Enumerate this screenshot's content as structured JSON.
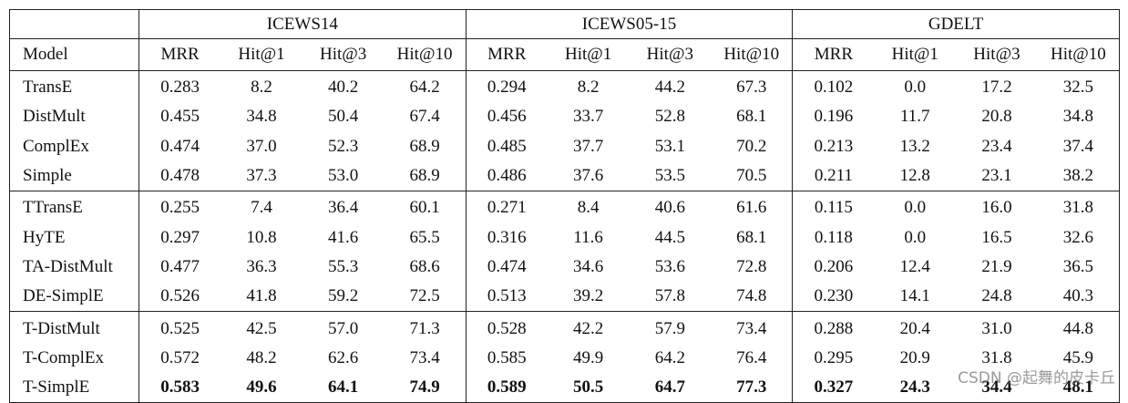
{
  "table": {
    "groups": [
      "ICEWS14",
      "ICEWS05-15",
      "GDELT"
    ],
    "columns": [
      "Model",
      "MRR",
      "Hit@1",
      "Hit@3",
      "Hit@10",
      "MRR",
      "Hit@1",
      "Hit@3",
      "Hit@10",
      "MRR",
      "Hit@1",
      "Hit@3",
      "Hit@10"
    ],
    "row_groups": [
      {
        "rows": [
          [
            "TransE",
            "0.283",
            "8.2",
            "40.2",
            "64.2",
            "0.294",
            "8.2",
            "44.2",
            "67.3",
            "0.102",
            "0.0",
            "17.2",
            "32.5"
          ],
          [
            "DistMult",
            "0.455",
            "34.8",
            "50.4",
            "67.4",
            "0.456",
            "33.7",
            "52.8",
            "68.1",
            "0.196",
            "11.7",
            "20.8",
            "34.8"
          ],
          [
            "ComplEx",
            "0.474",
            "37.0",
            "52.3",
            "68.9",
            "0.485",
            "37.7",
            "53.1",
            "70.2",
            "0.213",
            "13.2",
            "23.4",
            "37.4"
          ],
          [
            "Simple",
            "0.478",
            "37.3",
            "53.0",
            "68.9",
            "0.486",
            "37.6",
            "53.5",
            "70.5",
            "0.211",
            "12.8",
            "23.1",
            "38.2"
          ]
        ]
      },
      {
        "rows": [
          [
            "TTransE",
            "0.255",
            "7.4",
            "36.4",
            "60.1",
            "0.271",
            "8.4",
            "40.6",
            "61.6",
            "0.115",
            "0.0",
            "16.0",
            "31.8"
          ],
          [
            "HyTE",
            "0.297",
            "10.8",
            "41.6",
            "65.5",
            "0.316",
            "11.6",
            "44.5",
            "68.1",
            "0.118",
            "0.0",
            "16.5",
            "32.6"
          ],
          [
            "TA-DistMult",
            "0.477",
            "36.3",
            "55.3",
            "68.6",
            "0.474",
            "34.6",
            "53.6",
            "72.8",
            "0.206",
            "12.4",
            "21.9",
            "36.5"
          ],
          [
            "DE-SimplE",
            "0.526",
            "41.8",
            "59.2",
            "72.5",
            "0.513",
            "39.2",
            "57.8",
            "74.8",
            "0.230",
            "14.1",
            "24.8",
            "40.3"
          ]
        ]
      },
      {
        "rows": [
          [
            "T-DistMult",
            "0.525",
            "42.5",
            "57.0",
            "71.3",
            "0.528",
            "42.2",
            "57.9",
            "73.4",
            "0.288",
            "20.4",
            "31.0",
            "44.8"
          ],
          [
            "T-ComplEx",
            "0.572",
            "48.2",
            "62.6",
            "73.4",
            "0.585",
            "49.9",
            "64.2",
            "76.4",
            "0.295",
            "20.9",
            "31.8",
            "45.9"
          ],
          [
            "T-SimplE",
            "0.583",
            "49.6",
            "64.1",
            "74.9",
            "0.589",
            "50.5",
            "64.7",
            "77.3",
            "0.327",
            "24.3",
            "34.4",
            "48.1"
          ]
        ]
      }
    ]
  },
  "watermark": "CSDN @起舞的皮卡丘"
}
